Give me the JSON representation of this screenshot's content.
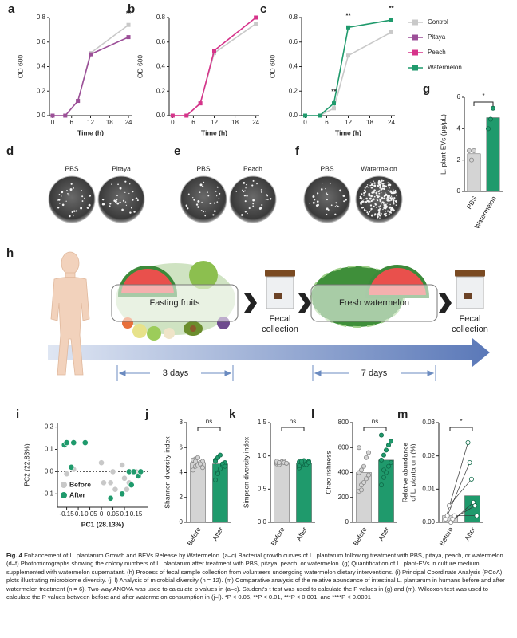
{
  "chart_data": [
    {
      "type": "line",
      "panel": "a",
      "xlabel": "Time (h)",
      "ylabel": "OD 600",
      "x": [
        0,
        4,
        8,
        12,
        24
      ],
      "xlim": [
        -1,
        25
      ],
      "xticks": [
        0,
        6,
        12,
        18,
        24
      ],
      "ylim": [
        0,
        0.8
      ],
      "yticks": [
        {
          "value": 0,
          "label": "0.0"
        },
        0.2,
        0.4,
        0.6,
        0.8
      ],
      "series": [
        {
          "name": "Control",
          "color": "#c9c9c9",
          "values": [
            0,
            0,
            0.12,
            0.51,
            0.74
          ]
        },
        {
          "name": "Pitaya",
          "color": "#9c4f98",
          "values": [
            0,
            0,
            0.12,
            0.5,
            0.64
          ]
        }
      ],
      "annotations": [
        {
          "x": 24,
          "text": "**"
        }
      ]
    },
    {
      "type": "line",
      "panel": "b",
      "xlabel": "Time (h)",
      "ylabel": "OD 600",
      "x": [
        0,
        4,
        8,
        12,
        24
      ],
      "xlim": [
        -1,
        25
      ],
      "xticks": [
        0,
        6,
        12,
        18,
        24
      ],
      "ylim": [
        0,
        0.8
      ],
      "yticks": [
        {
          "value": 0,
          "label": "0.0"
        },
        0.2,
        0.4,
        0.6,
        0.8
      ],
      "series": [
        {
          "name": "Control",
          "color": "#c9c9c9",
          "values": [
            0,
            0,
            0.1,
            0.51,
            0.75
          ]
        },
        {
          "name": "Peach",
          "color": "#d6338a",
          "values": [
            0,
            0,
            0.1,
            0.53,
            0.8
          ]
        }
      ]
    },
    {
      "type": "line",
      "panel": "c",
      "xlabel": "Time (h)",
      "ylabel": "OD 600",
      "x": [
        0,
        4,
        8,
        12,
        24
      ],
      "xlim": [
        -1,
        25
      ],
      "xticks": [
        0,
        6,
        12,
        18,
        24
      ],
      "ylim": [
        0,
        0.8
      ],
      "yticks": [
        {
          "value": 0,
          "label": "0.0"
        },
        0.2,
        0.4,
        0.6,
        0.8
      ],
      "series": [
        {
          "name": "Control",
          "color": "#c9c9c9",
          "values": [
            0,
            0,
            0.06,
            0.49,
            0.68
          ]
        },
        {
          "name": "Watermelon",
          "color": "#1f9a6c",
          "values": [
            0,
            0,
            0.1,
            0.72,
            0.78
          ]
        }
      ],
      "annotations": [
        {
          "x": 8,
          "text": "**"
        },
        {
          "x": 12,
          "text": "**"
        },
        {
          "x": 24,
          "text": "**"
        }
      ]
    },
    {
      "type": "bar",
      "panel": "g",
      "ylabel": "L. plant-EVs (μg/μL)",
      "categories": [
        "PBS",
        "Watermelon"
      ],
      "values": [
        2.4,
        4.7
      ],
      "colors": [
        "#d4d4d4",
        "#1f9a6c"
      ],
      "points": [
        [
          2.6,
          2.0,
          2.6
        ],
        [
          4.0,
          4.6,
          5.3
        ]
      ],
      "ylim": [
        0,
        6
      ],
      "yticks": [
        0,
        2,
        4,
        6
      ],
      "annotation": "*"
    },
    {
      "type": "scatter",
      "panel": "i",
      "xlabel": "PC1 (28.13%)",
      "ylabel": "PC2 (22.83%)",
      "xlim": [
        -0.19,
        0.2
      ],
      "xticks": [
        -0.15,
        -0.1,
        -0.05,
        0,
        0.05,
        0.1,
        0.15
      ],
      "ylim": [
        -0.16,
        0.22
      ],
      "yticks": [
        -0.1,
        {
          "value": 0,
          "label": "0.0"
        },
        0.1,
        0.2
      ],
      "series": [
        {
          "name": "Before",
          "color": "#c8c8c8",
          "x": [
            -0.12,
            -0.15,
            0,
            0.01,
            0.04,
            0.05,
            0.06,
            0.09,
            0.1,
            0.11,
            0.12,
            0.15
          ],
          "y": [
            0.01,
            -0.01,
            0.04,
            -0.05,
            -0.05,
            0,
            -0.08,
            0.03,
            -0.03,
            -0.08,
            -0.05,
            0
          ]
        },
        {
          "name": "After",
          "color": "#1f9a6c",
          "x": [
            -0.16,
            -0.15,
            -0.12,
            -0.07,
            -0.13,
            0.04,
            0.09,
            0.12,
            0.13,
            0.14,
            0.16,
            0.17
          ],
          "y": [
            0.12,
            0.13,
            0.13,
            0.13,
            0.02,
            -0.12,
            -0.1,
            0,
            -0.06,
            0,
            -0.02,
            0
          ]
        }
      ]
    },
    {
      "type": "bar",
      "panel": "j",
      "ylabel": "Shannon diversity index",
      "categories": [
        "Before",
        "After"
      ],
      "values": [
        4.8,
        4.7
      ],
      "colors": [
        "#d4d4d4",
        "#1f9a6c"
      ],
      "points": [
        [
          4.2,
          4.5,
          4.6,
          4.8,
          4.9,
          5.0,
          5.1,
          5.2,
          4.7,
          4.4,
          5.0,
          4.9
        ],
        [
          3.4,
          4.0,
          4.3,
          4.6,
          4.8,
          5.0,
          5.2,
          5.4,
          4.7,
          4.5,
          4.9,
          3.9
        ]
      ],
      "ylim": [
        0,
        8
      ],
      "yticks": [
        0,
        2,
        4,
        6,
        8
      ],
      "annotation": "ns"
    },
    {
      "type": "bar",
      "panel": "k",
      "ylabel": "Simpson diversity index",
      "categories": [
        "Before",
        "After"
      ],
      "values": [
        0.9,
        0.89
      ],
      "colors": [
        "#d4d4d4",
        "#1f9a6c"
      ],
      "points": [
        [
          0.88,
          0.9,
          0.91,
          0.92,
          0.89,
          0.9,
          0.87,
          0.91,
          0.9,
          0.89,
          0.92,
          0.9
        ],
        [
          0.82,
          0.86,
          0.88,
          0.9,
          0.92,
          0.91,
          0.89,
          0.93,
          0.87,
          0.9,
          0.85,
          0.92
        ]
      ],
      "ylim": [
        0,
        1.5
      ],
      "yticks": [
        {
          "value": 0,
          "label": "0.0"
        },
        0.5,
        {
          "value": 1,
          "label": "1.0"
        },
        1.5
      ],
      "annotation": "ns"
    },
    {
      "type": "bar",
      "panel": "l",
      "ylabel": "Chao rishness",
      "categories": [
        "Before",
        "After"
      ],
      "values": [
        400,
        500
      ],
      "colors": [
        "#d4d4d4",
        "#1f9a6c"
      ],
      "points": [
        [
          250,
          300,
          320,
          350,
          380,
          400,
          420,
          450,
          520,
          560,
          600,
          260
        ],
        [
          300,
          360,
          400,
          450,
          480,
          500,
          540,
          580,
          620,
          650,
          700,
          420
        ]
      ],
      "ylim": [
        0,
        800
      ],
      "yticks": [
        0,
        200,
        400,
        600,
        800
      ],
      "annotation": "ns"
    },
    {
      "type": "bar",
      "panel": "m",
      "ylabel": [
        "Relative abundance",
        "of L. plantarum (%)"
      ],
      "categories": [
        "Before",
        "After"
      ],
      "values": [
        0.002,
        0.008
      ],
      "colors": [
        "#d4d4d4",
        "#1f9a6c"
      ],
      "points": [
        [
          0.001,
          0.002,
          0.005,
          0,
          0.001,
          0.002
        ],
        [
          0.024,
          0.018,
          0.013,
          0.006,
          0.005,
          0.002
        ]
      ],
      "paired": true,
      "ylim": [
        0,
        0.03
      ],
      "yticks": [
        {
          "value": 0,
          "label": "0.00"
        },
        0.01,
        0.02,
        0.03
      ],
      "annotation": "*"
    }
  ],
  "photos": [
    {
      "panel": "d",
      "left": "PBS",
      "right": "Pitaya"
    },
    {
      "panel": "e",
      "left": "PBS",
      "right": "Peach"
    },
    {
      "panel": "f",
      "left": "PBS",
      "right": "Watermelon"
    }
  ],
  "protocol": {
    "panel": "h",
    "stage1": "Fasting fruits",
    "collection1": [
      "Fecal",
      "collection"
    ],
    "stage2": "Fresh watermelon",
    "collection2": [
      "Fecal",
      "collection"
    ],
    "duration1": "3 days",
    "duration2": "7 days"
  },
  "caption": {
    "label": "Fig. 4",
    "text": "Enhancement of L. plantarum Growth and BEVs Release by Watermelon. (a–c) Bacterial growth curves of L. plantarum following treatment with PBS, pitaya, peach, or watermelon. (d–f) Photomicrographs showing the colony numbers of L. plantarum after treatment with PBS, pitaya, peach, or watermelon. (g) Quantification of L. plant-EVs in culture medium supplemented with watermelon supernatant. (h) Process of fecal sample collection from volunteers undergoing watermelon dietary interventions. (i) Principal Coordinate Analysis (PCoA) plots illustrating microbiome diversity. (j–l) Analysis of microbial diversity (n = 12). (m) Comparative analysis of the relative abundance of intestinal L. plantarum in humans before and after watermelon treatment (n = 6). Two-way ANOVA was used to calculate p values in (a–c). Student's t test was used to calculate the P values in (g) and (m). Wilcoxon test was used to calculate the P values between before and after watermelon consumption in (j–l). *P < 0.05, **P < 0.01, ***P < 0.001, and ****P < 0.0001"
  }
}
